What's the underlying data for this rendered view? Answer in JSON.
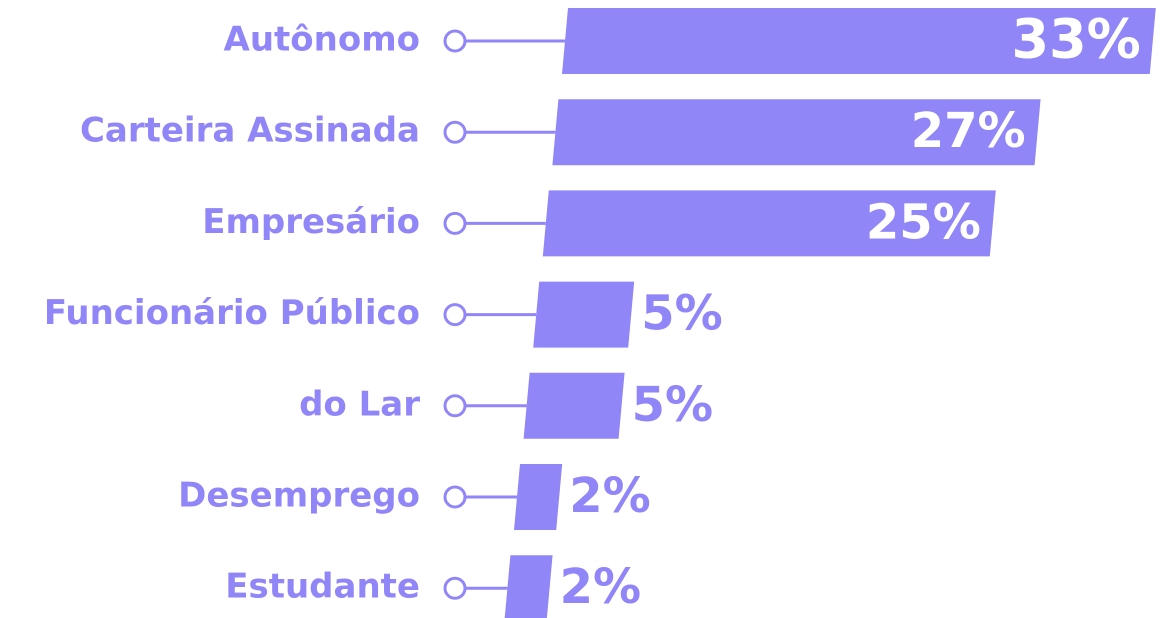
{
  "chart_data": {
    "type": "bar",
    "orientation": "horizontal",
    "color": "#9186f8",
    "categories": [
      "Autônomo",
      "Carteira Assinada",
      "Empresário",
      "Funcionário Público",
      "do Lar",
      "Desemprego",
      "Estudante"
    ],
    "values": [
      33,
      27,
      25,
      5,
      5,
      2,
      2
    ],
    "value_labels": [
      "33%",
      "27%",
      "25%",
      "5%",
      "5%",
      "2%",
      "2%"
    ]
  }
}
